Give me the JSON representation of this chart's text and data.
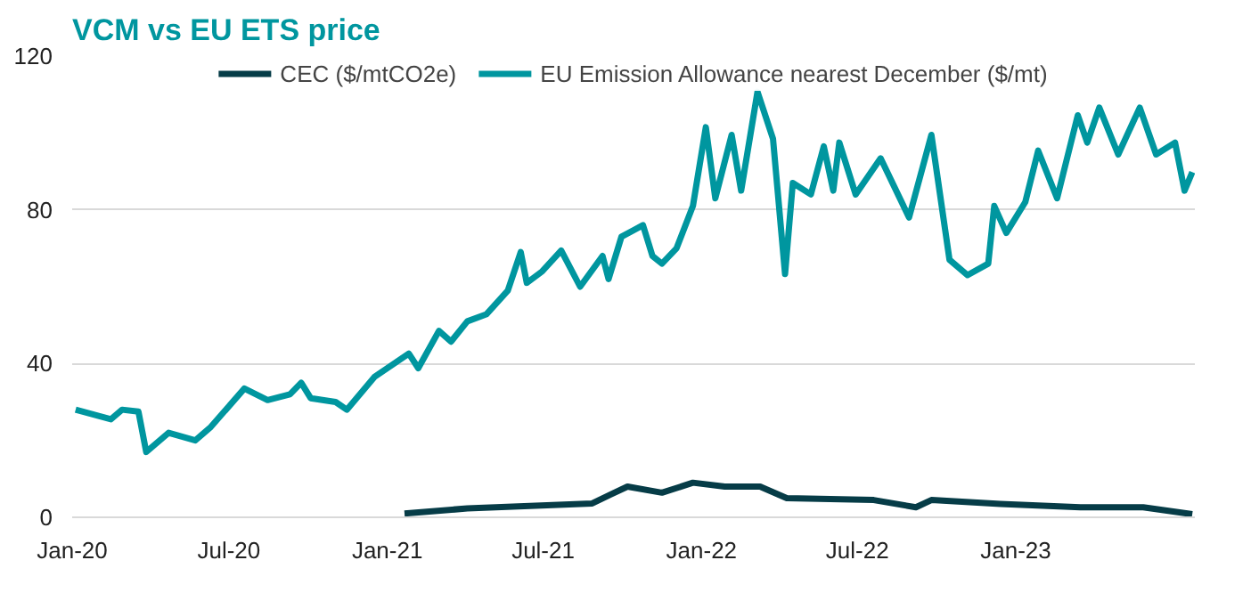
{
  "chart_data": {
    "type": "line",
    "title": "VCM vs EU ETS price",
    "xlim": [
      "2020-01-01",
      "2023-07-28"
    ],
    "xticks": [
      {
        "value": "2020-01-01",
        "label": "Jan-20"
      },
      {
        "value": "2020-07-01",
        "label": "Jul-20"
      },
      {
        "value": "2021-01-01",
        "label": "Jan-21"
      },
      {
        "value": "2021-07-01",
        "label": "Jul-21"
      },
      {
        "value": "2022-01-01",
        "label": "Jan-22"
      },
      {
        "value": "2022-07-01",
        "label": "Jul-22"
      },
      {
        "value": "2023-01-01",
        "label": "Jan-23"
      }
    ],
    "ylim": [
      0,
      120
    ],
    "yticks": [
      0,
      40,
      80,
      120
    ],
    "grid": "y",
    "legend": "top",
    "line_style": "solid",
    "marker": "none",
    "series": [
      {
        "name": "CEC ($/mtCO2e)",
        "color": "#063c47",
        "x": [
          "2021-01-21",
          "2021-04-04",
          "2021-08-27",
          "2021-09-18",
          "2021-10-07",
          "2021-11-16",
          "2021-12-22",
          "2022-01-28",
          "2022-03-10",
          "2022-04-10",
          "2022-07-20",
          "2022-09-07",
          "2022-09-25",
          "2022-12-14",
          "2023-03-17",
          "2023-05-29",
          "2023-07-25"
        ],
        "values": [
          1.0,
          2.3,
          3.6,
          6,
          8,
          6.4,
          9,
          8,
          8,
          5,
          4.5,
          2.6,
          4.5,
          3.5,
          2.6,
          2.6,
          0.8
        ]
      },
      {
        "name": "EU Emission Allowance nearest December ($/mt)",
        "color": "#00969f",
        "x": [
          "2020-01-05",
          "2020-02-15",
          "2020-02-28",
          "2020-03-18",
          "2020-03-27",
          "2020-04-22",
          "2020-05-23",
          "2020-06-10",
          "2020-07-19",
          "2020-08-15",
          "2020-09-10",
          "2020-09-23",
          "2020-10-04",
          "2020-11-02",
          "2020-11-15",
          "2020-12-17",
          "2021-01-26",
          "2021-02-06",
          "2021-03-02",
          "2021-03-16",
          "2021-04-04",
          "2021-04-26",
          "2021-05-21",
          "2021-06-05",
          "2021-06-12",
          "2021-06-30",
          "2021-07-22",
          "2021-08-13",
          "2021-09-08",
          "2021-09-15",
          "2021-09-30",
          "2021-10-25",
          "2021-11-05",
          "2021-11-16",
          "2021-12-03",
          "2021-12-22",
          "2022-01-06",
          "2022-01-17",
          "2022-02-05",
          "2022-02-16",
          "2022-03-07",
          "2022-03-25",
          "2022-04-08",
          "2022-04-17",
          "2022-05-08",
          "2022-05-23",
          "2022-06-03",
          "2022-06-10",
          "2022-06-29",
          "2022-07-28",
          "2022-08-30",
          "2022-09-25",
          "2022-10-16",
          "2022-11-06",
          "2022-11-30",
          "2022-12-07",
          "2022-12-21",
          "2023-01-12",
          "2023-01-27",
          "2023-02-18",
          "2023-03-14",
          "2023-03-25",
          "2023-04-08",
          "2023-04-30",
          "2023-05-25",
          "2023-06-13",
          "2023-07-05",
          "2023-07-16",
          "2023-07-25"
        ],
        "values": [
          28,
          25.5,
          28,
          27.5,
          17,
          22,
          20,
          23.5,
          33.5,
          30.5,
          32,
          35,
          31,
          30,
          28,
          36.5,
          42.6,
          38.8,
          48.5,
          45.7,
          51,
          52.8,
          59,
          69,
          61,
          64,
          69.4,
          60,
          68,
          62,
          73,
          76,
          68,
          66,
          70,
          81,
          101.5,
          83,
          99.5,
          85,
          110.7,
          98.5,
          63.3,
          87,
          84,
          96.5,
          85,
          97.5,
          84,
          93.4,
          78,
          99.5,
          67,
          63,
          66,
          81,
          74,
          82,
          95.4,
          83,
          104.6,
          97.5,
          106.6,
          94.4,
          106.6,
          94.4,
          97.5,
          85,
          89.8
        ]
      }
    ]
  }
}
